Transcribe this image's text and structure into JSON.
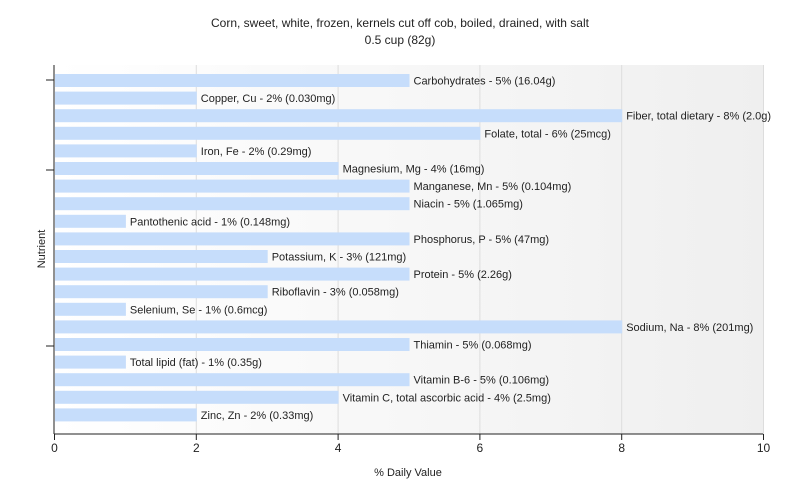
{
  "chart_data": {
    "type": "bar",
    "orientation": "horizontal",
    "title": "Corn, sweet, white, frozen, kernels cut off cob, boiled, drained, with salt",
    "subtitle": "0.5 cup (82g)",
    "xlabel": "% Daily Value",
    "ylabel": "Nutrient",
    "xlim": [
      0,
      10
    ],
    "xticks": [
      0,
      2,
      4,
      6,
      8,
      10
    ],
    "grid": true,
    "bar_color": "#c6ddfb",
    "categories": [
      "Carbohydrates",
      "Copper, Cu",
      "Fiber, total dietary",
      "Folate, total",
      "Iron, Fe",
      "Magnesium, Mg",
      "Manganese, Mn",
      "Niacin",
      "Pantothenic acid",
      "Phosphorus, P",
      "Potassium, K",
      "Protein",
      "Riboflavin",
      "Selenium, Se",
      "Sodium, Na",
      "Thiamin",
      "Total lipid (fat)",
      "Vitamin B-6",
      "Vitamin C, total ascorbic acid",
      "Zinc, Zn"
    ],
    "values": [
      5,
      2,
      8,
      6,
      2,
      4,
      5,
      5,
      1,
      5,
      3,
      5,
      3,
      1,
      8,
      5,
      1,
      5,
      4,
      2
    ],
    "labels": [
      "Carbohydrates - 5% (16.04g)",
      "Copper, Cu - 2% (0.030mg)",
      "Fiber, total dietary - 8% (2.0g)",
      "Folate, total - 6% (25mcg)",
      "Iron, Fe - 2% (0.29mg)",
      "Magnesium, Mg - 4% (16mg)",
      "Manganese, Mn - 5% (0.104mg)",
      "Niacin - 5% (1.065mg)",
      "Pantothenic acid - 1% (0.148mg)",
      "Phosphorus, P - 5% (47mg)",
      "Potassium, K - 3% (121mg)",
      "Protein - 5% (2.26g)",
      "Riboflavin - 3% (0.058mg)",
      "Selenium, Se - 1% (0.6mcg)",
      "Sodium, Na - 8% (201mg)",
      "Thiamin - 5% (0.068mg)",
      "Total lipid (fat) - 1% (0.35g)",
      "Vitamin B-6 - 5% (0.106mg)",
      "Vitamin C, total ascorbic acid - 4% (2.5mg)",
      "Zinc, Zn - 2% (0.33mg)"
    ]
  }
}
